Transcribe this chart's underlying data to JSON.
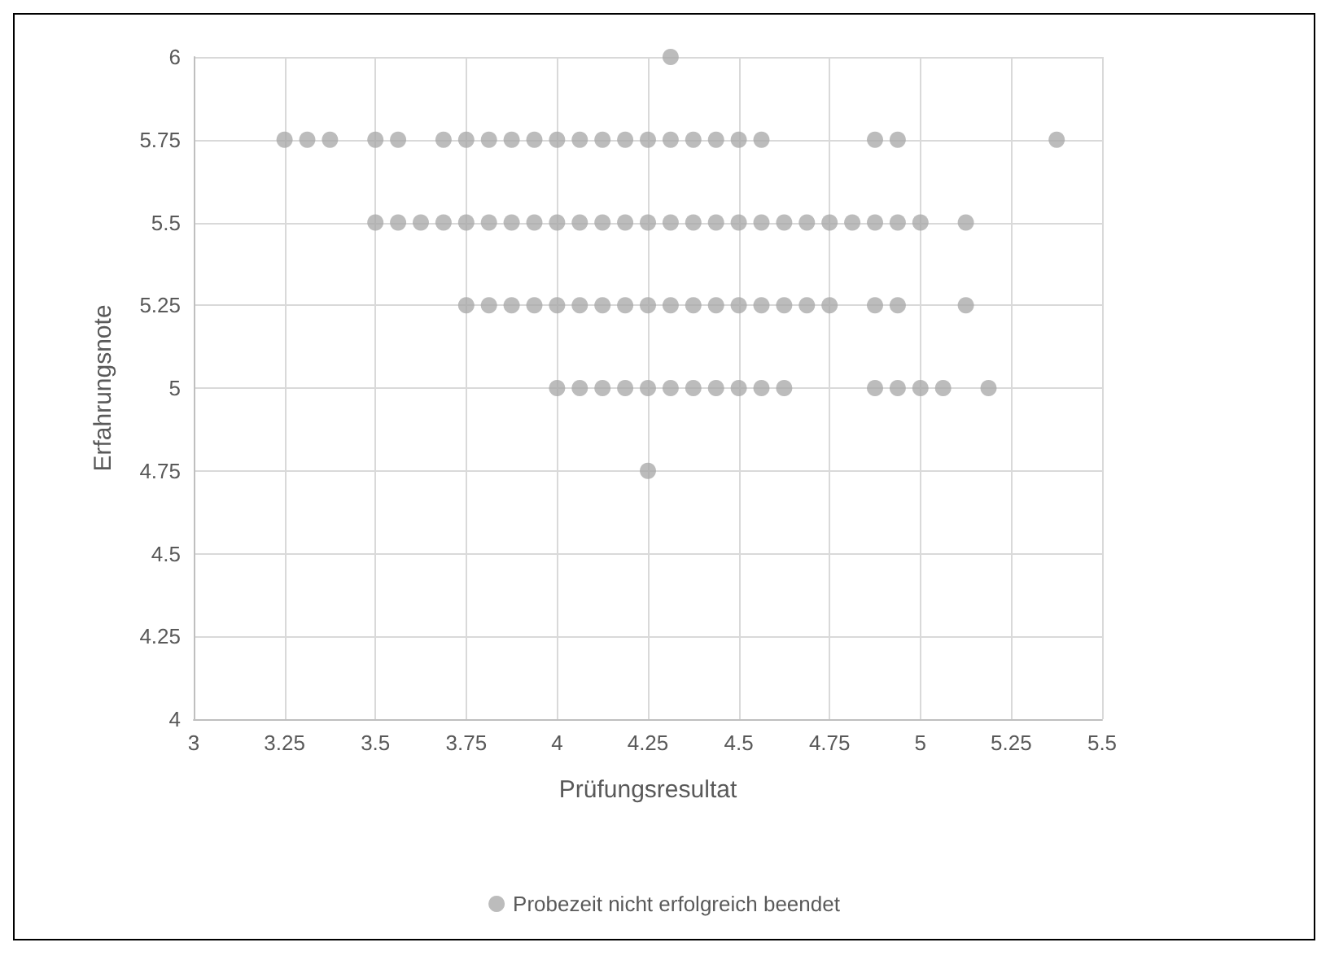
{
  "chart_data": {
    "type": "scatter",
    "xlabel": "Prüfungsresultat",
    "ylabel": "Erfahrungsnote",
    "xlim": [
      3,
      5.5
    ],
    "xticks": [
      3,
      3.25,
      3.5,
      3.75,
      4,
      4.25,
      4.5,
      4.75,
      5,
      5.25,
      5.5
    ],
    "ylim": [
      4,
      6
    ],
    "yticks": [
      4,
      4.25,
      4.5,
      4.75,
      5,
      5.25,
      5.5,
      5.75,
      6
    ],
    "grid": true,
    "legend": "bottom",
    "marker": "circle",
    "series": [
      {
        "name": "Probezeit nicht erfolgreich beendet",
        "color": "#a6a6a6",
        "x": [
          4.3125,
          3.25,
          3.3125,
          3.375,
          3.5,
          3.5625,
          3.6875,
          3.75,
          3.8125,
          3.875,
          3.9375,
          4,
          4.0625,
          4.125,
          4.1875,
          4.25,
          4.3125,
          4.375,
          4.4375,
          4.5,
          4.5625,
          4.875,
          4.9375,
          5.375,
          3.5,
          3.5625,
          3.625,
          3.6875,
          3.75,
          3.8125,
          3.875,
          3.9375,
          4,
          4.0625,
          4.125,
          4.1875,
          4.25,
          4.3125,
          4.375,
          4.4375,
          4.5,
          4.5625,
          4.625,
          4.6875,
          4.75,
          4.8125,
          4.875,
          4.9375,
          5,
          5.125,
          3.75,
          3.8125,
          3.875,
          3.9375,
          4,
          4.0625,
          4.125,
          4.1875,
          4.25,
          4.3125,
          4.375,
          4.4375,
          4.5,
          4.5625,
          4.625,
          4.6875,
          4.75,
          4.875,
          4.9375,
          5.125,
          4,
          4.0625,
          4.125,
          4.1875,
          4.25,
          4.3125,
          4.375,
          4.4375,
          4.5,
          4.5625,
          4.625,
          4.875,
          4.9375,
          5,
          5.0625,
          5.1875,
          4.25
        ],
        "values": [
          6,
          5.75,
          5.75,
          5.75,
          5.75,
          5.75,
          5.75,
          5.75,
          5.75,
          5.75,
          5.75,
          5.75,
          5.75,
          5.75,
          5.75,
          5.75,
          5.75,
          5.75,
          5.75,
          5.75,
          5.75,
          5.75,
          5.75,
          5.75,
          5.5,
          5.5,
          5.5,
          5.5,
          5.5,
          5.5,
          5.5,
          5.5,
          5.5,
          5.5,
          5.5,
          5.5,
          5.5,
          5.5,
          5.5,
          5.5,
          5.5,
          5.5,
          5.5,
          5.5,
          5.5,
          5.5,
          5.5,
          5.5,
          5.5,
          5.5,
          5.25,
          5.25,
          5.25,
          5.25,
          5.25,
          5.25,
          5.25,
          5.25,
          5.25,
          5.25,
          5.25,
          5.25,
          5.25,
          5.25,
          5.25,
          5.25,
          5.25,
          5.25,
          5.25,
          5.25,
          5,
          5,
          5,
          5,
          5,
          5,
          5,
          5,
          5,
          5,
          5,
          5,
          5,
          5,
          5,
          5,
          4.75
        ]
      }
    ]
  }
}
